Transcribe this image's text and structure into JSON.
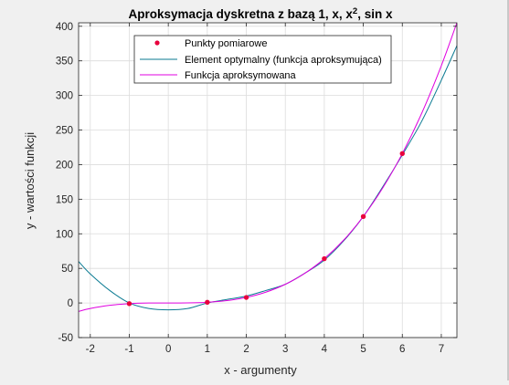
{
  "chart_data": {
    "type": "line",
    "title_prefix": "Aproksymacja dyskretna z bazą 1, x, x",
    "title_superscript": "2",
    "title_suffix": ", sin x",
    "xlabel": "x - argumenty",
    "ylabel": "y - wartości funkcji",
    "xlim": [
      -2.3,
      7.4
    ],
    "ylim": [
      -50,
      405
    ],
    "xticks": [
      "-2",
      "-1",
      "0",
      "1",
      "2",
      "3",
      "4",
      "5",
      "6",
      "7"
    ],
    "yticks": [
      "-50",
      "0",
      "50",
      "100",
      "150",
      "200",
      "250",
      "300",
      "350",
      "400"
    ],
    "grid": true,
    "legend_position": "top-center",
    "series": [
      {
        "name": "Punkty pomiarowe",
        "kind": "markers",
        "color": "#e8003c",
        "x": [
          -1,
          1,
          2,
          4,
          5,
          6
        ],
        "y": [
          -1,
          1,
          8,
          64,
          125,
          216
        ]
      },
      {
        "name": "Element optymalny (funkcja aproksymująca)",
        "kind": "line",
        "color": "#0a7a92",
        "x": [
          -2.3,
          -2.0,
          -1.5,
          -1.0,
          -0.5,
          0.0,
          0.5,
          1.0,
          1.5,
          2.0,
          2.5,
          3.0,
          3.5,
          4.0,
          4.5,
          5.0,
          5.5,
          6.0,
          6.5,
          7.0,
          7.4
        ],
        "y": [
          60,
          42,
          18,
          0,
          -8,
          -10,
          -8,
          0,
          5,
          10,
          18,
          27,
          43,
          62,
          90,
          125,
          168,
          214,
          263,
          322,
          372
        ]
      },
      {
        "name": "Funkcja aproksymowana",
        "kind": "line",
        "color": "#e000e0",
        "x": [
          -2.3,
          -2.0,
          -1.5,
          -1.0,
          -0.5,
          0.0,
          0.5,
          1.0,
          1.5,
          2.0,
          2.5,
          3.0,
          3.5,
          4.0,
          4.5,
          5.0,
          5.5,
          6.0,
          6.5,
          7.0,
          7.4
        ],
        "y": [
          -12.2,
          -8,
          -3.4,
          -1,
          -0.1,
          0,
          0.1,
          1,
          3.4,
          8,
          15.6,
          27,
          42.9,
          64,
          91.1,
          125,
          166.4,
          216,
          274.6,
          343,
          405.2
        ]
      }
    ]
  }
}
